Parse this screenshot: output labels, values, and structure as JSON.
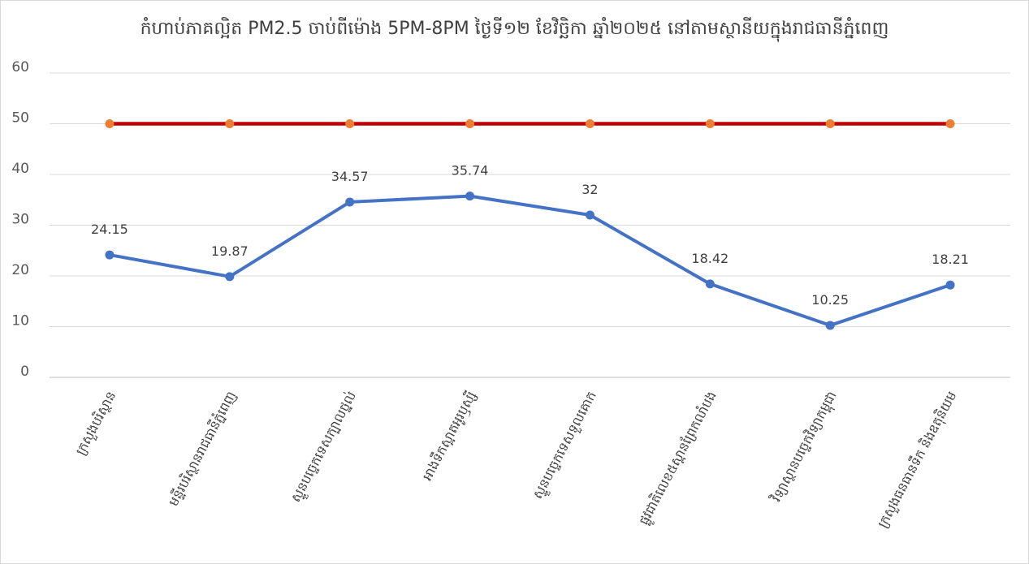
{
  "chart_data": {
    "type": "line",
    "title": "កំហាប់ភាគល្អិត PM2.5 ចាប់ពីម៉ោង 5PM-8PM ថ្ងៃទី១២ ខែវិច្ឆិកា ឆ្នាំ២០២៥ នៅតាមស្ថានីយក្នុងរាជធានីភ្នំពេញ",
    "xlabel": "",
    "ylabel": "",
    "ylim": [
      0,
      60
    ],
    "yticks": [
      0,
      10,
      20,
      30,
      40,
      50,
      60
    ],
    "grid": true,
    "legend": "none",
    "categories": [
      "ក្រសួងបរិស្ថាន",
      "មន្ទីរបរិស្ថានរាជធានីភ្នំពេញ",
      "ស្ទួនបច្ចេកទេសក្បាលថ្នល់",
      "អាងទឹកស្អាតអូរឫស្សី",
      "ស្ទួនបច្ចេកទេសទួលគោក",
      "ផ្លូវជាតិលេខ៥ស្ពានព្រែកលាំបង",
      "វិទ្យាស្ថានបច្ចេកវិទ្យាកម្ពុជា",
      "ក្រសួងធនធានទឹក និងឧតុនិយម"
    ],
    "series": [
      {
        "values": [
          24.15,
          19.87,
          34.57,
          35.74,
          32,
          18.42,
          10.25,
          18.21
        ],
        "data_labels": [
          "24.15",
          "19.87",
          "34.57",
          "35.74",
          "32",
          "18.42",
          "10.25",
          "18.21"
        ],
        "color": "#4472c4"
      },
      {
        "values": [
          50,
          50,
          50,
          50,
          50,
          50,
          50,
          50
        ],
        "color": "#c00000",
        "marker_color": "#ed7d31"
      }
    ],
    "gridline_color": "#d9d9d9",
    "axis_color": "#bfbfbf"
  }
}
